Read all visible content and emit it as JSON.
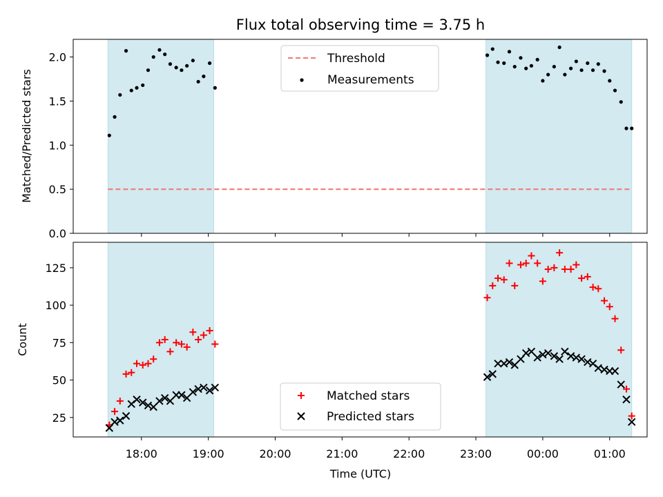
{
  "title": "Flux total observing time = 3.75 h",
  "chart_data": [
    {
      "type": "scatter",
      "ylabel": "Matched/Predicted stars",
      "ylim": [
        0,
        2.2
      ],
      "yticks": [
        "0.0",
        "0.5",
        "1.0",
        "1.5",
        "2.0"
      ],
      "ytick_values": [
        0,
        0.5,
        1.0,
        1.5,
        2.0
      ],
      "xlim_hours": [
        16.98,
        25.56
      ],
      "legend_position": "top-center",
      "observing_windows_hours": [
        [
          17.5,
          19.08
        ],
        [
          23.15,
          25.33
        ]
      ],
      "window_color": "#d2eaf0",
      "threshold": {
        "name": "Threshold",
        "value": 0.5,
        "color": "#f08080"
      },
      "measurements": {
        "name": "Measurements",
        "color": "#000000",
        "points": [
          [
            17.52,
            1.11
          ],
          [
            17.6,
            1.32
          ],
          [
            17.68,
            1.57
          ],
          [
            17.77,
            2.07
          ],
          [
            17.85,
            1.62
          ],
          [
            17.93,
            1.65
          ],
          [
            18.02,
            1.68
          ],
          [
            18.1,
            1.85
          ],
          [
            18.18,
            2.0
          ],
          [
            18.27,
            2.08
          ],
          [
            18.35,
            2.03
          ],
          [
            18.43,
            1.92
          ],
          [
            18.52,
            1.88
          ],
          [
            18.6,
            1.85
          ],
          [
            18.68,
            1.9
          ],
          [
            18.77,
            1.96
          ],
          [
            18.85,
            1.72
          ],
          [
            18.93,
            1.78
          ],
          [
            19.02,
            1.93
          ],
          [
            19.1,
            1.65
          ],
          [
            23.17,
            2.02
          ],
          [
            23.25,
            2.09
          ],
          [
            23.33,
            1.94
          ],
          [
            23.42,
            1.93
          ],
          [
            23.5,
            2.06
          ],
          [
            23.58,
            1.89
          ],
          [
            23.67,
            1.99
          ],
          [
            23.75,
            1.87
          ],
          [
            23.83,
            1.9
          ],
          [
            23.92,
            1.97
          ],
          [
            24.0,
            1.73
          ],
          [
            24.08,
            1.8
          ],
          [
            24.17,
            1.89
          ],
          [
            24.25,
            2.11
          ],
          [
            24.33,
            1.8
          ],
          [
            24.42,
            1.87
          ],
          [
            24.5,
            1.95
          ],
          [
            24.58,
            1.85
          ],
          [
            24.67,
            1.93
          ],
          [
            24.75,
            1.85
          ],
          [
            24.83,
            1.92
          ],
          [
            24.92,
            1.84
          ],
          [
            25.0,
            1.73
          ],
          [
            25.08,
            1.62
          ],
          [
            25.17,
            1.49
          ],
          [
            25.25,
            1.19
          ],
          [
            25.33,
            1.19
          ]
        ]
      }
    },
    {
      "type": "scatter",
      "ylabel": "Count",
      "xlabel": "Time (UTC)",
      "ylim": [
        12,
        142
      ],
      "yticks": [
        "25",
        "50",
        "75",
        "100",
        "125"
      ],
      "ytick_values": [
        25,
        50,
        75,
        100,
        125
      ],
      "xlim_hours": [
        16.98,
        25.56
      ],
      "xticks": [
        "18:00",
        "19:00",
        "20:00",
        "21:00",
        "22:00",
        "23:00",
        "00:00",
        "01:00"
      ],
      "xtick_values": [
        18,
        19,
        20,
        21,
        22,
        23,
        24,
        25
      ],
      "legend_position": "bottom-center",
      "observing_windows_hours": [
        [
          17.5,
          19.08
        ],
        [
          23.15,
          25.33
        ]
      ],
      "series": [
        {
          "name": "Matched stars",
          "marker": "+",
          "color": "#ff0000",
          "points": [
            [
              17.52,
              20
            ],
            [
              17.6,
              29
            ],
            [
              17.68,
              36
            ],
            [
              17.77,
              54
            ],
            [
              17.85,
              55
            ],
            [
              17.93,
              61
            ],
            [
              18.02,
              60
            ],
            [
              18.1,
              61
            ],
            [
              18.18,
              64
            ],
            [
              18.27,
              75
            ],
            [
              18.35,
              77
            ],
            [
              18.43,
              69
            ],
            [
              18.52,
              75
            ],
            [
              18.6,
              74
            ],
            [
              18.68,
              72
            ],
            [
              18.77,
              82
            ],
            [
              18.85,
              77
            ],
            [
              18.93,
              80
            ],
            [
              19.02,
              83
            ],
            [
              19.1,
              74
            ],
            [
              23.17,
              105
            ],
            [
              23.25,
              113
            ],
            [
              23.33,
              118
            ],
            [
              23.42,
              117
            ],
            [
              23.5,
              128
            ],
            [
              23.58,
              113
            ],
            [
              23.67,
              127
            ],
            [
              23.75,
              128
            ],
            [
              23.83,
              133
            ],
            [
              23.92,
              128
            ],
            [
              24.0,
              116
            ],
            [
              24.08,
              124
            ],
            [
              24.17,
              125
            ],
            [
              24.25,
              135
            ],
            [
              24.33,
              124
            ],
            [
              24.42,
              124
            ],
            [
              24.5,
              127
            ],
            [
              24.58,
              118
            ],
            [
              24.67,
              119
            ],
            [
              24.75,
              112
            ],
            [
              24.83,
              111
            ],
            [
              24.92,
              103
            ],
            [
              25.0,
              99
            ],
            [
              25.08,
              91
            ],
            [
              25.17,
              70
            ],
            [
              25.25,
              44
            ],
            [
              25.33,
              26
            ]
          ]
        },
        {
          "name": "Predicted stars",
          "marker": "x",
          "color": "#000000",
          "points": [
            [
              17.52,
              18
            ],
            [
              17.6,
              22
            ],
            [
              17.68,
              23
            ],
            [
              17.77,
              26
            ],
            [
              17.85,
              34
            ],
            [
              17.93,
              37
            ],
            [
              18.02,
              35
            ],
            [
              18.1,
              33
            ],
            [
              18.18,
              32
            ],
            [
              18.27,
              36
            ],
            [
              18.35,
              38
            ],
            [
              18.43,
              36
            ],
            [
              18.52,
              40
            ],
            [
              18.6,
              40
            ],
            [
              18.68,
              38
            ],
            [
              18.77,
              42
            ],
            [
              18.85,
              44
            ],
            [
              18.93,
              45
            ],
            [
              19.02,
              43
            ],
            [
              19.1,
              45
            ],
            [
              23.17,
              52
            ],
            [
              23.25,
              54
            ],
            [
              23.33,
              61
            ],
            [
              23.42,
              61
            ],
            [
              23.5,
              62
            ],
            [
              23.58,
              60
            ],
            [
              23.67,
              64
            ],
            [
              23.75,
              68
            ],
            [
              23.83,
              69
            ],
            [
              23.92,
              65
            ],
            [
              24.0,
              67
            ],
            [
              24.08,
              68
            ],
            [
              24.17,
              66
            ],
            [
              24.25,
              64
            ],
            [
              24.33,
              69
            ],
            [
              24.42,
              66
            ],
            [
              24.5,
              65
            ],
            [
              24.58,
              64
            ],
            [
              24.67,
              62
            ],
            [
              24.75,
              61
            ],
            [
              24.83,
              58
            ],
            [
              24.92,
              57
            ],
            [
              25.0,
              56
            ],
            [
              25.08,
              56
            ],
            [
              25.17,
              47
            ],
            [
              25.25,
              37
            ],
            [
              25.33,
              22
            ]
          ]
        }
      ]
    }
  ]
}
